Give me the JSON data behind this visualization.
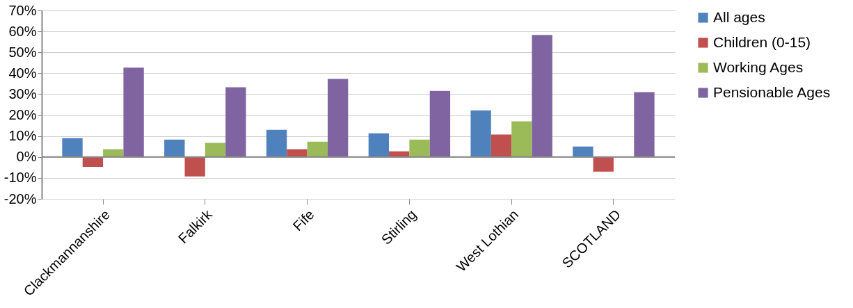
{
  "chart_data": {
    "type": "bar",
    "categories": [
      "Clackmannanshire",
      "Falkirk",
      "Fife",
      "Stirling",
      "West Lothian",
      "SCOTLAND"
    ],
    "series": [
      {
        "name": "All ages",
        "color": "#4f81bd",
        "values": [
          9,
          8.3,
          13,
          11.3,
          22.3,
          5
        ]
      },
      {
        "name": "Children (0-15)",
        "color": "#c0504d",
        "values": [
          -4.7,
          -9.3,
          3.7,
          2.7,
          10.7,
          -7
        ]
      },
      {
        "name": "Working Ages",
        "color": "#9bbb59",
        "values": [
          3.7,
          6.7,
          7.3,
          8.3,
          17,
          0
        ]
      },
      {
        "name": "Pensionable Ages",
        "color": "#8064a2",
        "values": [
          42.7,
          33.3,
          37.3,
          31.6,
          58.3,
          31
        ]
      }
    ],
    "ylim": [
      -20,
      70
    ],
    "yticks": [
      {
        "value": -20,
        "label": "-20%"
      },
      {
        "value": -10,
        "label": "-10%"
      },
      {
        "value": 0,
        "label": "0%"
      },
      {
        "value": 10,
        "label": "10%"
      },
      {
        "value": 20,
        "label": "20%"
      },
      {
        "value": 30,
        "label": "30%"
      },
      {
        "value": 40,
        "label": "40%"
      },
      {
        "value": 50,
        "label": "50%"
      },
      {
        "value": 60,
        "label": "60%"
      },
      {
        "value": 70,
        "label": "70%"
      }
    ],
    "grid": "y",
    "legend": "right"
  }
}
